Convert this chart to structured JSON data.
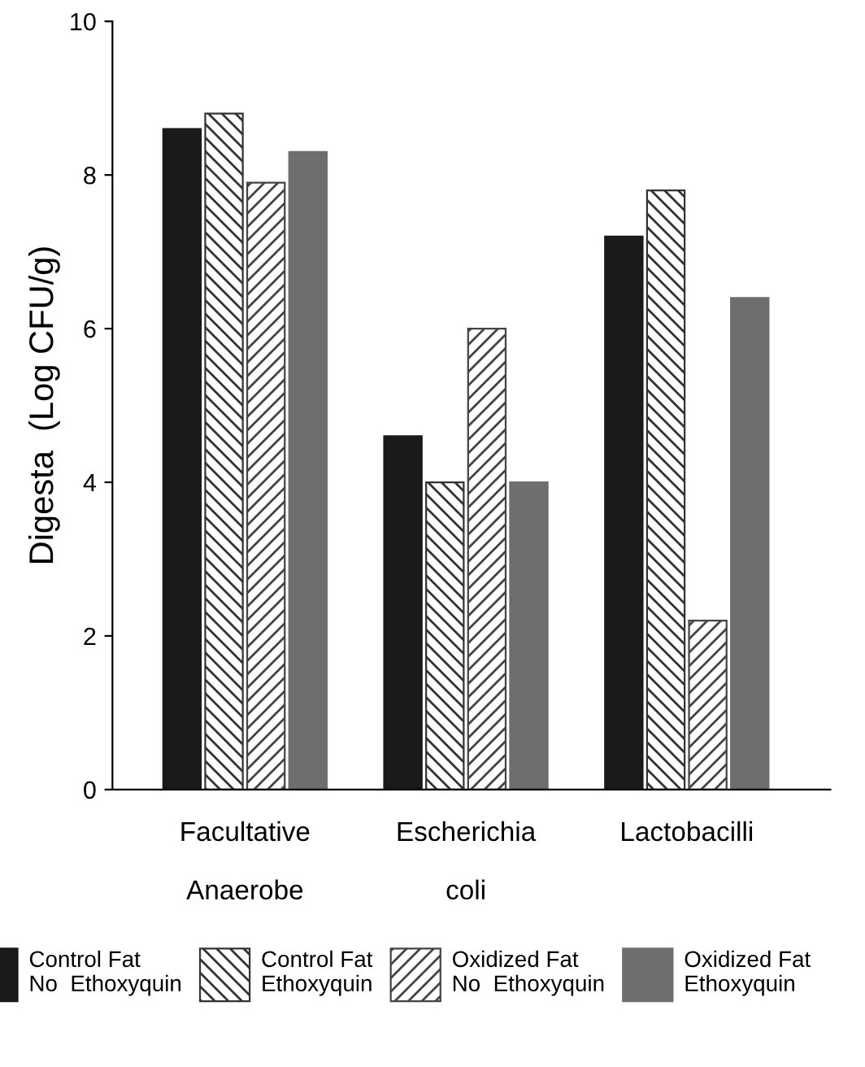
{
  "chart_data": {
    "type": "bar",
    "ylabel": "Digesta  (Log CFU/g)",
    "categories": [
      "Facultative\n\nAnaerobe",
      "Escherichia\n\ncoli",
      "Lactobacilli"
    ],
    "series": [
      {
        "name": "Control Fat\nNo  Ethoxyquin",
        "color": "#1a1a1a",
        "values": [
          8.6,
          4.6,
          7.2
        ]
      },
      {
        "name": "Control Fat\nEthoxyquin",
        "color": "#333333",
        "values": [
          8.8,
          4.0,
          7.8
        ]
      },
      {
        "name": "Oxidized Fat\nNo  Ethoxyquin",
        "color": "#444444",
        "values": [
          7.9,
          6.0,
          2.2
        ]
      },
      {
        "name": "Oxidized Fat\nEthoxyquin",
        "color": "#6e6e6e",
        "values": [
          8.3,
          4.0,
          6.4
        ]
      }
    ],
    "ylim": [
      0,
      10
    ],
    "yticks": [
      0,
      2,
      4,
      6,
      8,
      10
    ],
    "grid": false,
    "legend": "bottom"
  }
}
